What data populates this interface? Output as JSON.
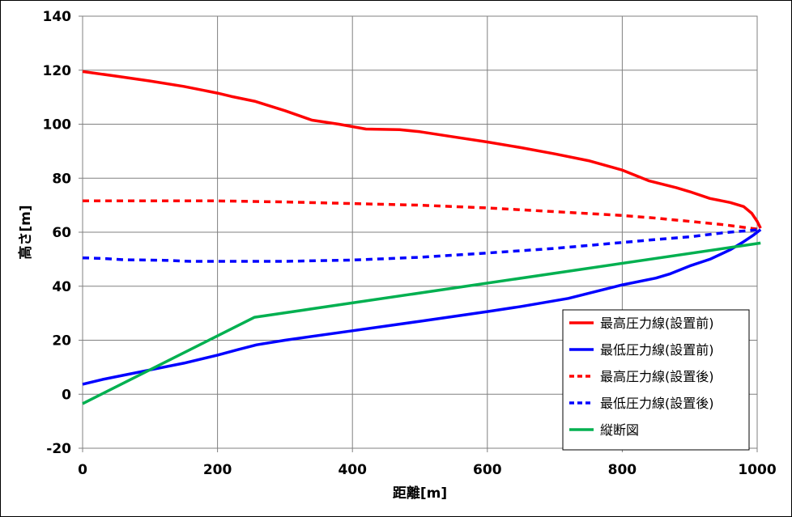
{
  "chart_data": {
    "type": "line",
    "title": "",
    "xlabel": "距離[m]",
    "ylabel": "高さ[m]",
    "xlim": [
      0,
      1000
    ],
    "ylim": [
      -20,
      140
    ],
    "xticks": [
      0,
      200,
      400,
      600,
      800,
      1000
    ],
    "yticks": [
      -20,
      0,
      20,
      40,
      60,
      80,
      100,
      120,
      140
    ],
    "grid": true,
    "legend_position": "bottom-right",
    "series": [
      {
        "name": "最高圧力線(設置前)",
        "color": "#ff0000",
        "dash": "solid",
        "points": [
          [
            0,
            119.5
          ],
          [
            50,
            117.8
          ],
          [
            100,
            116
          ],
          [
            150,
            114
          ],
          [
            200,
            111.5
          ],
          [
            220,
            110.3
          ],
          [
            255,
            108.5
          ],
          [
            300,
            105
          ],
          [
            340,
            101.5
          ],
          [
            380,
            100
          ],
          [
            420,
            98.2
          ],
          [
            470,
            98
          ],
          [
            500,
            97.2
          ],
          [
            550,
            95.3
          ],
          [
            600,
            93.4
          ],
          [
            650,
            91.3
          ],
          [
            700,
            89
          ],
          [
            750,
            86.5
          ],
          [
            800,
            83
          ],
          [
            840,
            79
          ],
          [
            880,
            76.5
          ],
          [
            900,
            75
          ],
          [
            930,
            72.5
          ],
          [
            960,
            71
          ],
          [
            980,
            69.5
          ],
          [
            992,
            67
          ],
          [
            1000,
            64
          ],
          [
            1005,
            61.5
          ]
        ]
      },
      {
        "name": "最低圧力線(設置前)",
        "color": "#0000ff",
        "dash": "solid",
        "points": [
          [
            0,
            3.7
          ],
          [
            30,
            5.5
          ],
          [
            60,
            7
          ],
          [
            100,
            9
          ],
          [
            150,
            11.5
          ],
          [
            200,
            14.5
          ],
          [
            230,
            16.5
          ],
          [
            258,
            18.3
          ],
          [
            300,
            20
          ],
          [
            400,
            23.5
          ],
          [
            500,
            27
          ],
          [
            600,
            30.6
          ],
          [
            650,
            32.5
          ],
          [
            720,
            35.5
          ],
          [
            760,
            38
          ],
          [
            800,
            40.5
          ],
          [
            850,
            43
          ],
          [
            870,
            44.5
          ],
          [
            900,
            47.5
          ],
          [
            930,
            50
          ],
          [
            960,
            53.5
          ],
          [
            980,
            56.5
          ],
          [
            995,
            59
          ],
          [
            1005,
            61
          ]
        ]
      },
      {
        "name": "最高圧力線(設置後)",
        "color": "#ff0000",
        "dash": "dashed",
        "points": [
          [
            0,
            71.6
          ],
          [
            100,
            71.6
          ],
          [
            200,
            71.6
          ],
          [
            300,
            71.2
          ],
          [
            400,
            70.6
          ],
          [
            500,
            70
          ],
          [
            600,
            69
          ],
          [
            700,
            67.6
          ],
          [
            800,
            66.2
          ],
          [
            850,
            65.2
          ],
          [
            900,
            64
          ],
          [
            950,
            62.8
          ],
          [
            1005,
            61
          ]
        ]
      },
      {
        "name": "最低圧力線(設置後)",
        "color": "#0000ff",
        "dash": "dashed",
        "points": [
          [
            0,
            50.5
          ],
          [
            30,
            50.3
          ],
          [
            60,
            49.8
          ],
          [
            120,
            49.6
          ],
          [
            160,
            49.2
          ],
          [
            200,
            49.2
          ],
          [
            300,
            49.2
          ],
          [
            400,
            49.7
          ],
          [
            500,
            50.7
          ],
          [
            600,
            52.3
          ],
          [
            700,
            54
          ],
          [
            800,
            56.2
          ],
          [
            850,
            57.3
          ],
          [
            900,
            58.3
          ],
          [
            950,
            59.8
          ],
          [
            1005,
            61
          ]
        ]
      },
      {
        "name": "縦断図",
        "color": "#00b050",
        "dash": "solid",
        "points": [
          [
            0,
            -3.5
          ],
          [
            255,
            28.5
          ],
          [
            1005,
            56
          ]
        ]
      }
    ]
  }
}
